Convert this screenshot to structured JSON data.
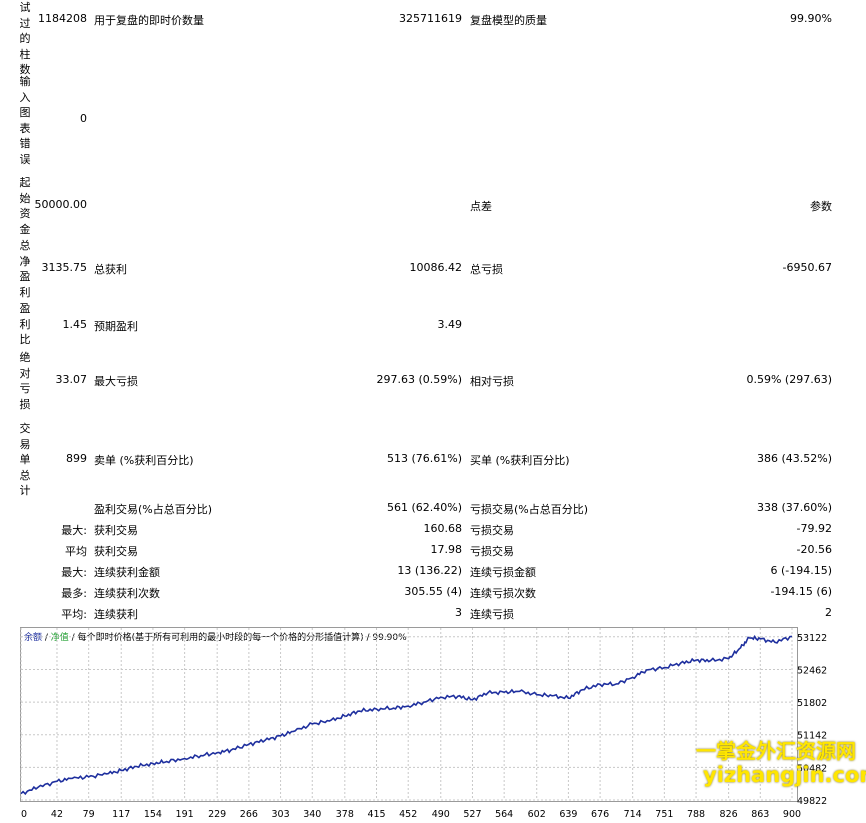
{
  "report": {
    "bars": {
      "label": "测试过的柱数",
      "label_visible": "试过的柱数",
      "value": "1184208",
      "ticks_label": "用于复盘的即时价数量",
      "ticks_value": "325711619",
      "quality_label": "复盘模型的质量",
      "quality_value": "99.90%"
    },
    "errors": {
      "label": "输入图表错误",
      "value": "0"
    },
    "deposit": {
      "label": "起始资金",
      "value": "50000.00",
      "spread_label": "点差",
      "spread_value": "参数"
    },
    "net_profit": {
      "label": "总净盈利",
      "value": "3135.75",
      "gross_profit_label": "总获利",
      "gross_profit_value": "10086.42",
      "gross_loss_label": "总亏损",
      "gross_loss_value": "-6950.67"
    },
    "profit_factor": {
      "label": "盈利比",
      "value": "1.45",
      "expected_label": "预期盈利",
      "expected_value": "3.49"
    },
    "drawdown": {
      "label": "绝对亏损",
      "value": "33.07",
      "max_label": "最大亏损",
      "max_value": "297.63 (0.59%)",
      "rel_label": "相对亏损",
      "rel_value": "0.59% (297.63)"
    },
    "trades": {
      "label": "交易单总计",
      "value": "899",
      "short_label": "卖单 (%获利百分比)",
      "short_value": "513 (76.61%)",
      "long_label": "买单 (%获利百分比)",
      "long_value": "386 (43.52%)"
    },
    "profit_trades": {
      "label": "盈利交易(%占总百分比)",
      "value": "561 (62.40%)",
      "loss_label": "亏损交易(%占总百分比)",
      "loss_value": "338 (37.60%)"
    },
    "largest": {
      "prefix": "最大:",
      "label": "获利交易",
      "value": "160.68",
      "loss_label": "亏损交易",
      "loss_value": "-79.92"
    },
    "average": {
      "prefix": "平均",
      "label": "获利交易",
      "value": "17.98",
      "loss_label": "亏损交易",
      "loss_value": "-20.56"
    },
    "max_consec_money": {
      "prefix": "最大:",
      "label": "连续获利金额",
      "value": "13 (136.22)",
      "loss_label": "连续亏损金额",
      "loss_value": "6 (-194.15)"
    },
    "max_consec_count": {
      "prefix": "最多:",
      "label": "连续获利次数",
      "value": "305.55 (4)",
      "loss_label": "连续亏损次数",
      "loss_value": "-194.15 (6)"
    },
    "avg_consec": {
      "prefix": "平均:",
      "label": "连续获利",
      "value": "3",
      "loss_label": "连续亏损",
      "loss_value": "2"
    }
  },
  "chart_header": {
    "balance": "余额",
    "sep1": " / ",
    "equity": "净值",
    "sep2": " / ",
    "desc": "每个即时价格(基于所有可利用的最小时段的每一个价格的分形插值计算)",
    "sep3": " / ",
    "quality": "99.90%"
  },
  "watermark": {
    "line1": "一掌金外汇资源网",
    "line2": "yizhangjin.com"
  },
  "chart_data": {
    "type": "line",
    "title": "",
    "xlabel": "",
    "ylabel": "",
    "x_ticks": [
      0,
      42,
      79,
      117,
      154,
      191,
      229,
      266,
      303,
      340,
      378,
      415,
      452,
      490,
      527,
      564,
      602,
      639,
      676,
      714,
      751,
      788,
      826,
      863,
      900
    ],
    "y_ticks": [
      49822,
      50482,
      51142,
      51802,
      52462,
      53122
    ],
    "ylim": [
      49822,
      53300
    ],
    "xlim": [
      0,
      900
    ],
    "grid": true,
    "series": [
      {
        "name": "余额",
        "color": "#1e2f9e",
        "x": [
          0,
          20,
          42,
          60,
          79,
          100,
          117,
          135,
          154,
          170,
          191,
          210,
          229,
          245,
          266,
          285,
          303,
          320,
          340,
          360,
          378,
          395,
          415,
          435,
          452,
          470,
          490,
          510,
          527,
          545,
          564,
          582,
          602,
          620,
          639,
          655,
          676,
          695,
          714,
          730,
          751,
          770,
          788,
          805,
          826,
          840,
          850,
          863,
          880,
          900
        ],
        "values": [
          49950,
          50080,
          50200,
          50260,
          50290,
          50350,
          50420,
          50500,
          50560,
          50600,
          50660,
          50720,
          50780,
          50830,
          50950,
          51030,
          51120,
          51220,
          51360,
          51420,
          51520,
          51620,
          51660,
          51680,
          51720,
          51800,
          51900,
          51920,
          51850,
          51990,
          52000,
          52020,
          51950,
          51930,
          51880,
          52050,
          52160,
          52170,
          52300,
          52450,
          52500,
          52590,
          52650,
          52640,
          52680,
          52900,
          53100,
          53080,
          53010,
          53130
        ]
      }
    ]
  }
}
